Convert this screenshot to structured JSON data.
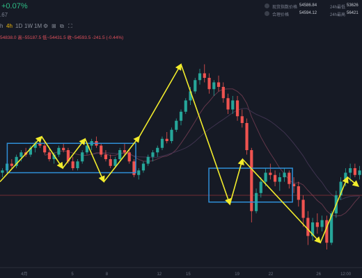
{
  "header": {
    "change": "+0.07%",
    "sub": ".67"
  },
  "stats": [
    {
      "label": "现货指数价格",
      "value": "54586.84",
      "label2": "24h最低",
      "value2": "53626"
    },
    {
      "label": "合理价格",
      "value": "54594.12",
      "label2": "24h最高",
      "value2": "56421"
    }
  ],
  "toolbar": {
    "items": [
      "h",
      "4h",
      "1D",
      "1W",
      "1M"
    ],
    "active": "4h"
  },
  "ohlc": {
    "open": "54838.0",
    "high": "高~55187.5",
    "low": "低~54431.5",
    "close": "收~54593.5",
    "change": "-241.5 (-0.44%)"
  },
  "colors": {
    "up": "#26a69a",
    "down": "#ef5350",
    "box": "#2f8fd8",
    "arrow": "#f2ec2c",
    "ma": "#6b3b4f",
    "price_line": "#b2393f",
    "background": "#161a25"
  },
  "chart_data": {
    "type": "candlestick",
    "x_ticks": [
      "4月",
      "5",
      "8",
      "12",
      "15",
      "19",
      "22",
      "26",
      "12:00"
    ],
    "price_range": [
      0,
      100
    ],
    "ohlc": [
      [
        42,
        44,
        40,
        43
      ],
      [
        43,
        47,
        42,
        46
      ],
      [
        46,
        48,
        44,
        45
      ],
      [
        45,
        50,
        44,
        49
      ],
      [
        49,
        52,
        47,
        51
      ],
      [
        51,
        53,
        49,
        50
      ],
      [
        50,
        54,
        49,
        53
      ],
      [
        53,
        56,
        51,
        55
      ],
      [
        55,
        57,
        53,
        54
      ],
      [
        54,
        56,
        50,
        51
      ],
      [
        51,
        53,
        47,
        48
      ],
      [
        48,
        51,
        46,
        50
      ],
      [
        50,
        54,
        49,
        53
      ],
      [
        53,
        55,
        51,
        52
      ],
      [
        52,
        53,
        46,
        47
      ],
      [
        47,
        49,
        43,
        44
      ],
      [
        44,
        48,
        43,
        47
      ],
      [
        47,
        52,
        46,
        51
      ],
      [
        51,
        55,
        50,
        54
      ],
      [
        54,
        57,
        52,
        56
      ],
      [
        56,
        58,
        53,
        54
      ],
      [
        54,
        55,
        49,
        50
      ],
      [
        50,
        52,
        47,
        48
      ],
      [
        48,
        50,
        44,
        45
      ],
      [
        45,
        49,
        44,
        48
      ],
      [
        48,
        53,
        47,
        52
      ],
      [
        52,
        55,
        50,
        51
      ],
      [
        51,
        52,
        46,
        47
      ],
      [
        47,
        48,
        40,
        41
      ],
      [
        41,
        44,
        39,
        43
      ],
      [
        43,
        47,
        42,
        46
      ],
      [
        46,
        50,
        45,
        49
      ],
      [
        49,
        52,
        47,
        51
      ],
      [
        51,
        54,
        49,
        53
      ],
      [
        53,
        58,
        52,
        57
      ],
      [
        57,
        60,
        55,
        56
      ],
      [
        56,
        62,
        55,
        61
      ],
      [
        61,
        66,
        60,
        65
      ],
      [
        65,
        70,
        63,
        69
      ],
      [
        69,
        75,
        68,
        74
      ],
      [
        74,
        80,
        72,
        78
      ],
      [
        78,
        84,
        77,
        83
      ],
      [
        83,
        88,
        81,
        86
      ],
      [
        86,
        90,
        82,
        84
      ],
      [
        84,
        86,
        77,
        79
      ],
      [
        79,
        83,
        76,
        82
      ],
      [
        82,
        85,
        78,
        80
      ],
      [
        80,
        82,
        73,
        75
      ],
      [
        75,
        77,
        68,
        70
      ],
      [
        70,
        76,
        68,
        74
      ],
      [
        74,
        76,
        65,
        67
      ],
      [
        67,
        70,
        62,
        64
      ],
      [
        64,
        66,
        50,
        52
      ],
      [
        52,
        53,
        20,
        25
      ],
      [
        25,
        35,
        24,
        33
      ],
      [
        33,
        40,
        31,
        38
      ],
      [
        38,
        44,
        36,
        42
      ],
      [
        42,
        46,
        39,
        41
      ],
      [
        41,
        43,
        36,
        38
      ],
      [
        38,
        42,
        34,
        40
      ],
      [
        40,
        44,
        38,
        42
      ],
      [
        42,
        43,
        35,
        37
      ],
      [
        37,
        40,
        33,
        36
      ],
      [
        36,
        38,
        27,
        30
      ],
      [
        30,
        32,
        18,
        22
      ],
      [
        22,
        25,
        10,
        14
      ],
      [
        14,
        22,
        12,
        20
      ],
      [
        20,
        24,
        15,
        18
      ],
      [
        18,
        23,
        16,
        21
      ],
      [
        21,
        23,
        8,
        11
      ],
      [
        11,
        25,
        10,
        24
      ],
      [
        24,
        34,
        22,
        32
      ],
      [
        32,
        40,
        30,
        38
      ],
      [
        38,
        44,
        36,
        42
      ],
      [
        42,
        46,
        38,
        44
      ],
      [
        44,
        46,
        40,
        41
      ],
      [
        41,
        45,
        39,
        43
      ]
    ],
    "boxes": [
      {
        "x0": 0.02,
        "x1": 0.375,
        "y0": 55,
        "y1": 42
      },
      {
        "x0": 0.577,
        "x1": 0.808,
        "y0": 44,
        "y1": 29
      }
    ],
    "arrows": [
      [
        [
          0.0,
          38
        ],
        [
          0.115,
          58
        ]
      ],
      [
        [
          0.115,
          58
        ],
        [
          0.173,
          44
        ]
      ],
      [
        [
          0.173,
          44
        ],
        [
          0.235,
          57
        ]
      ],
      [
        [
          0.235,
          57
        ],
        [
          0.287,
          38
        ]
      ],
      [
        [
          0.287,
          38
        ],
        [
          0.385,
          58
        ]
      ],
      [
        [
          0.385,
          58
        ],
        [
          0.5,
          90
        ]
      ],
      [
        [
          0.5,
          90
        ],
        [
          0.635,
          28
        ]
      ],
      [
        [
          0.635,
          28
        ],
        [
          0.67,
          48
        ]
      ],
      [
        [
          0.67,
          48
        ],
        [
          0.885,
          11
        ]
      ],
      [
        [
          0.885,
          11
        ],
        [
          0.96,
          40
        ]
      ],
      [
        [
          0.96,
          40
        ],
        [
          0.99,
          36
        ]
      ]
    ],
    "price_line": 32
  }
}
